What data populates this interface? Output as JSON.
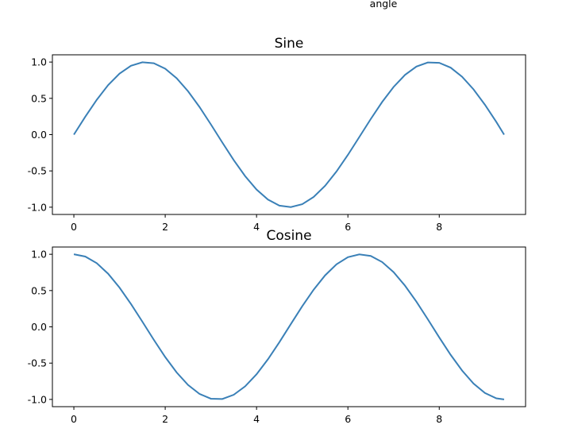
{
  "figure": {
    "top_label": "angle"
  },
  "chart_data": [
    {
      "type": "line",
      "title": "Sine",
      "xlabel": "",
      "ylabel": "",
      "xlim": [
        -0.47,
        9.89
      ],
      "ylim": [
        -1.1,
        1.1
      ],
      "xticks": [
        0,
        2,
        4,
        6,
        8
      ],
      "xtick_labels": [
        "0",
        "2",
        "4",
        "6",
        "8"
      ],
      "yticks": [
        1.0,
        0.5,
        0.0,
        -0.5,
        -1.0
      ],
      "ytick_labels": [
        "1.0",
        "0.5",
        "0.0",
        "-0.5",
        "-1.0"
      ],
      "grid": false,
      "color": "#3a80b7",
      "series": [
        {
          "x": [
            0,
            0.25,
            0.5,
            0.75,
            1,
            1.25,
            1.5,
            1.75,
            2,
            2.25,
            2.5,
            2.75,
            3,
            3.25,
            3.5,
            3.75,
            4,
            4.25,
            4.5,
            4.75,
            5,
            5.25,
            5.5,
            5.75,
            6,
            6.25,
            6.5,
            6.75,
            7,
            7.25,
            7.5,
            7.75,
            8,
            8.25,
            8.5,
            8.75,
            9,
            9.25,
            9.42
          ],
          "y": [
            0.0,
            0.247,
            0.479,
            0.682,
            0.841,
            0.949,
            0.997,
            0.984,
            0.909,
            0.778,
            0.598,
            0.382,
            0.141,
            -0.108,
            -0.351,
            -0.572,
            -0.757,
            -0.895,
            -0.978,
            -0.999,
            -0.959,
            -0.859,
            -0.706,
            -0.508,
            -0.279,
            -0.033,
            0.215,
            0.45,
            0.657,
            0.823,
            0.938,
            0.994,
            0.989,
            0.923,
            0.798,
            0.624,
            0.412,
            0.174,
            0.0
          ]
        }
      ]
    },
    {
      "type": "line",
      "title": "Cosine",
      "xlabel": "",
      "ylabel": "",
      "xlim": [
        -0.47,
        9.89
      ],
      "ylim": [
        -1.1,
        1.1
      ],
      "xticks": [
        0,
        2,
        4,
        6,
        8
      ],
      "xtick_labels": [
        "0",
        "2",
        "4",
        "6",
        "8"
      ],
      "yticks": [
        1.0,
        0.5,
        0.0,
        -0.5,
        -1.0
      ],
      "ytick_labels": [
        "1.0",
        "0.5",
        "0.0",
        "-0.5",
        "-1.0"
      ],
      "grid": false,
      "color": "#3a80b7",
      "series": [
        {
          "x": [
            0,
            0.25,
            0.5,
            0.75,
            1,
            1.25,
            1.5,
            1.75,
            2,
            2.25,
            2.5,
            2.75,
            3,
            3.25,
            3.5,
            3.75,
            4,
            4.25,
            4.5,
            4.75,
            5,
            5.25,
            5.5,
            5.75,
            6,
            6.25,
            6.5,
            6.75,
            7,
            7.25,
            7.5,
            7.75,
            8,
            8.25,
            8.5,
            8.75,
            9,
            9.25,
            9.42
          ],
          "y": [
            1.0,
            0.969,
            0.878,
            0.732,
            0.54,
            0.315,
            0.071,
            -0.178,
            -0.416,
            -0.628,
            -0.801,
            -0.924,
            -0.99,
            -0.994,
            -0.936,
            -0.82,
            -0.654,
            -0.446,
            -0.211,
            0.038,
            0.284,
            0.512,
            0.709,
            0.861,
            0.96,
            0.999,
            0.977,
            0.893,
            0.754,
            0.568,
            0.347,
            0.104,
            -0.146,
            -0.386,
            -0.602,
            -0.781,
            -0.911,
            -0.985,
            -1.0
          ]
        }
      ]
    }
  ]
}
